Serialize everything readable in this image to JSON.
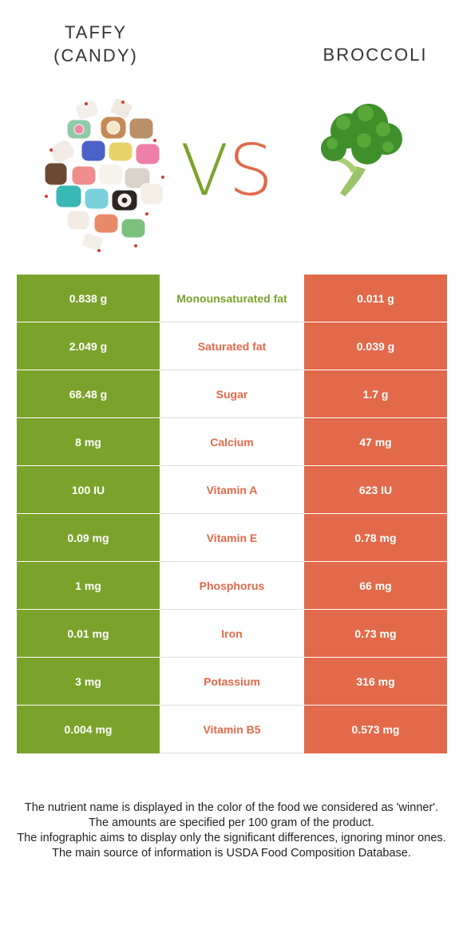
{
  "header": {
    "left_title": "TAFFY\n(CANDY)",
    "left_title_line1": "TAFFY",
    "left_title_line2": "(CANDY)",
    "right_title": "BROCCOLI",
    "vs_v": "V",
    "vs_s": "S"
  },
  "colors": {
    "left_winner": "#7aa32b",
    "right_winner": "#e2694a"
  },
  "rows": [
    {
      "left": "0.838 g",
      "nutrient": "Monounsaturated fat",
      "right": "0.011 g",
      "winner": "left"
    },
    {
      "left": "2.049 g",
      "nutrient": "Saturated fat",
      "right": "0.039 g",
      "winner": "right"
    },
    {
      "left": "68.48 g",
      "nutrient": "Sugar",
      "right": "1.7 g",
      "winner": "right"
    },
    {
      "left": "8 mg",
      "nutrient": "Calcium",
      "right": "47 mg",
      "winner": "right"
    },
    {
      "left": "100 IU",
      "nutrient": "Vitamin A",
      "right": "623 IU",
      "winner": "right"
    },
    {
      "left": "0.09 mg",
      "nutrient": "Vitamin E",
      "right": "0.78 mg",
      "winner": "right"
    },
    {
      "left": "1 mg",
      "nutrient": "Phosphorus",
      "right": "66 mg",
      "winner": "right"
    },
    {
      "left": "0.01 mg",
      "nutrient": "Iron",
      "right": "0.73 mg",
      "winner": "right"
    },
    {
      "left": "3 mg",
      "nutrient": "Potassium",
      "right": "316 mg",
      "winner": "right"
    },
    {
      "left": "0.004 mg",
      "nutrient": "Vitamin B5",
      "right": "0.573 mg",
      "winner": "right"
    }
  ],
  "footnote": {
    "line1": "The nutrient name is displayed in the color of the food we considered as 'winner'.",
    "line2": "The amounts are specified per 100 gram of the product.",
    "line3": "The infographic aims to display only the significant differences, ignoring minor ones.",
    "line4": "The main source of information is USDA Food Composition Database."
  }
}
